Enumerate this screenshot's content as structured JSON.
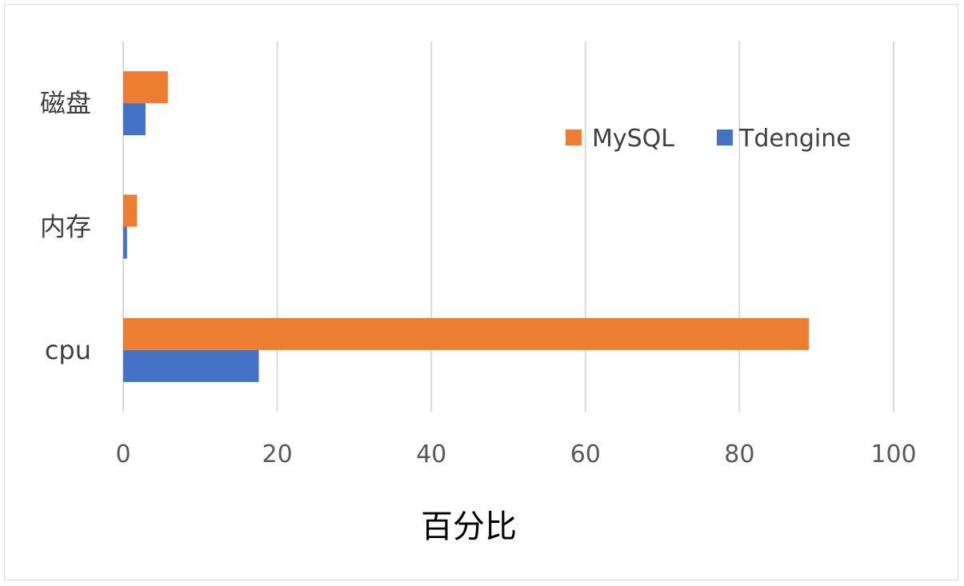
{
  "chart_data": {
    "type": "bar",
    "orientation": "horizontal",
    "categories": [
      "磁盘",
      "内存",
      "cpu"
    ],
    "series": [
      {
        "name": "MySQL",
        "values": [
          5.8,
          1.8,
          89
        ],
        "color": "#ed7d31"
      },
      {
        "name": "Tdengine",
        "values": [
          2.9,
          0.5,
          17.6
        ],
        "color": "#4472c4"
      }
    ],
    "xlabel": "百分比",
    "ylabel": "",
    "xlim": [
      0,
      100
    ],
    "xticks": [
      0,
      20,
      40,
      60,
      80,
      100
    ],
    "grid": true,
    "legend_position": "top-right"
  }
}
